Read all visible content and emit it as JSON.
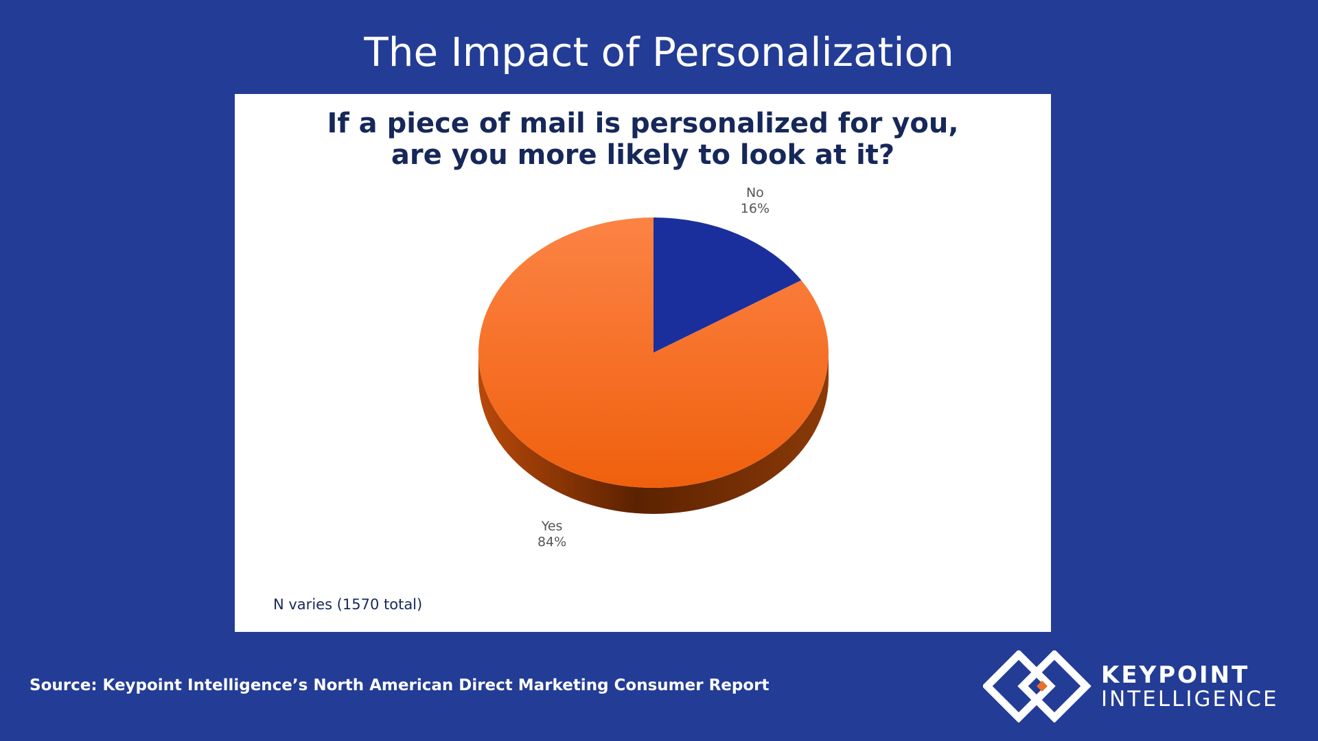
{
  "slide": {
    "title": "The Impact of Personalization",
    "source": "Source: Keypoint Intelligence’s North American Direct Marketing Consumer Report"
  },
  "chart_data": {
    "type": "pie",
    "title_lines": [
      "If a piece of mail is personalized for you,",
      "are you more likely to look at it?"
    ],
    "slices": [
      {
        "label": "No",
        "value": 16,
        "value_label": "16%",
        "color": "#1b2f9c"
      },
      {
        "label": "Yes",
        "value": 84,
        "value_label": "84%",
        "color": "#f76b16"
      }
    ],
    "note": "N varies (1570 total)",
    "style": "3d"
  },
  "logo": {
    "line1": "KEYPOINT",
    "line2": "INTELLIGENCE",
    "colors": {
      "mark": "#ffffff",
      "accent": "#e8702a"
    }
  }
}
